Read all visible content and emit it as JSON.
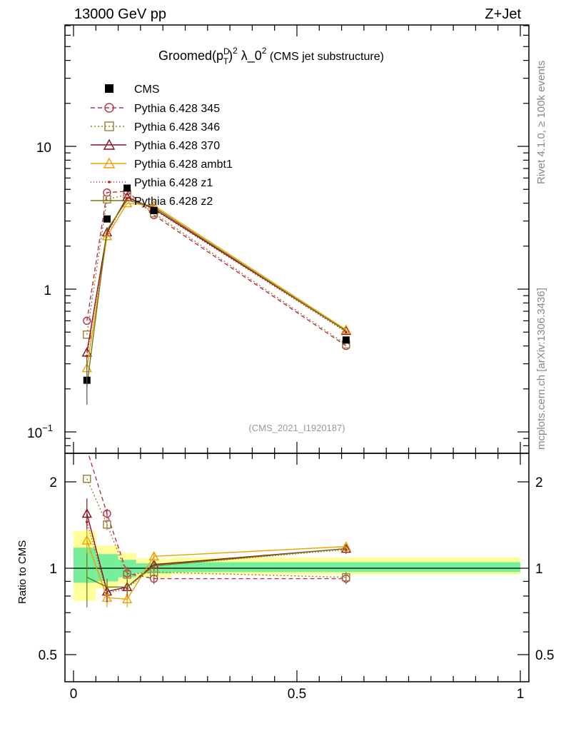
{
  "header": {
    "left": "13000 GeV pp",
    "right": "Z+Jet"
  },
  "side_text": {
    "top": "Rivet 4.1.0, ≥ 100k events",
    "bottom": "mcplots.cern.ch [arXiv:1306.3436]"
  },
  "chart_data": {
    "type": "line",
    "title": "Groomed(p_T^D)^2 λ_0^2 (CMS jet substructure)",
    "title_parts": {
      "base": "Groomed(p",
      "sup1": "D",
      "sub1": "T",
      "close": ")",
      "sup2": "2",
      "mid": " λ_0",
      "sup3": "2",
      "tail": " (CMS jet substructure)"
    },
    "annotation": "(CMS_2021_I1920187)",
    "xlabel": "",
    "ylabel": "",
    "ratio_ylabel": "Ratio to CMS",
    "xlim": [
      -0.02,
      1.02
    ],
    "ylim": [
      0.075,
      60
    ],
    "ratio_ylim": [
      0.42,
      2.4
    ],
    "x_ticks": [
      "0",
      "0.5",
      "1"
    ],
    "y_ticks": [
      "10^-1",
      "1",
      "10"
    ],
    "ratio_ticks": [
      "0.5",
      "1",
      "2"
    ],
    "x": [
      0.03,
      0.075,
      0.12,
      0.18,
      0.61
    ],
    "data": {
      "name": "CMS",
      "values": [
        0.23,
        3.1,
        5.1,
        3.55,
        0.44
      ],
      "band_inner": [
        [
          0.0,
          0.05,
          1.18,
          0.89
        ],
        [
          0.05,
          0.1,
          1.12,
          0.9
        ],
        [
          0.1,
          0.14,
          1.07,
          0.93
        ],
        [
          0.14,
          0.22,
          1.04,
          0.96
        ],
        [
          0.22,
          1.0,
          1.05,
          0.97
        ]
      ],
      "band_outer": [
        [
          0.0,
          0.05,
          1.35,
          0.77
        ],
        [
          0.05,
          0.1,
          1.2,
          0.85
        ],
        [
          0.1,
          0.14,
          1.13,
          0.88
        ],
        [
          0.14,
          0.22,
          1.08,
          0.93
        ],
        [
          0.22,
          1.0,
          1.09,
          0.95
        ]
      ]
    },
    "series": [
      {
        "name": "Pythia 6.428 345",
        "color": "#b5344b",
        "marker": "circle",
        "dash": "6,4",
        "values": [
          0.6,
          4.75,
          4.85,
          3.3,
          0.4
        ],
        "ratio": [
          2.6,
          1.55,
          0.96,
          0.92,
          0.92
        ],
        "ratio_err": [
          0.0,
          0.06,
          0.05,
          0.04,
          0.04
        ]
      },
      {
        "name": "Pythia 6.428 346",
        "color": "#9c7c38",
        "marker": "square",
        "dash": "2,3",
        "values": [
          0.48,
          4.25,
          4.6,
          3.4,
          0.41
        ],
        "ratio": [
          2.05,
          1.42,
          0.95,
          0.97,
          0.93
        ],
        "ratio_err": [
          0.0,
          0.06,
          0.05,
          0.04,
          0.04
        ]
      },
      {
        "name": "Pythia 6.428 370",
        "color": "#8b0f1e",
        "marker": "triangle",
        "dash": "",
        "values": [
          0.36,
          2.5,
          4.4,
          3.65,
          0.51
        ],
        "ratio": [
          1.55,
          0.83,
          0.86,
          1.03,
          1.17
        ],
        "ratio_err": [
          0.2,
          0.07,
          0.05,
          0.04,
          0.04
        ]
      },
      {
        "name": "Pythia 6.428 ambt1",
        "color": "#f0a000",
        "marker": "triangle",
        "dash": "",
        "values": [
          0.28,
          2.35,
          4.0,
          3.85,
          0.52
        ],
        "ratio": [
          1.25,
          0.79,
          0.78,
          1.1,
          1.19
        ],
        "ratio_err": [
          0.12,
          0.06,
          0.05,
          0.04,
          0.04
        ]
      },
      {
        "name": "Pythia 6.428 z1",
        "color": "#d01010",
        "marker": "dot",
        "dash": "1,3",
        "values": [
          0.34,
          2.45,
          4.35,
          3.6,
          0.5
        ],
        "ratio": [
          1.45,
          0.82,
          0.85,
          1.02,
          1.16
        ],
        "ratio_err": [
          0.0,
          0.06,
          0.05,
          0.04,
          0.04
        ]
      },
      {
        "name": "Pythia 6.428 z2",
        "color": "#6b7a10",
        "marker": "none",
        "dash": "",
        "values": [
          0.21,
          2.6,
          4.2,
          3.75,
          0.51
        ],
        "ratio": [
          0.93,
          0.86,
          0.86,
          1.02,
          1.17
        ],
        "ratio_err": [
          0.2,
          0.06,
          0.05,
          0.04,
          0.04
        ]
      }
    ]
  }
}
